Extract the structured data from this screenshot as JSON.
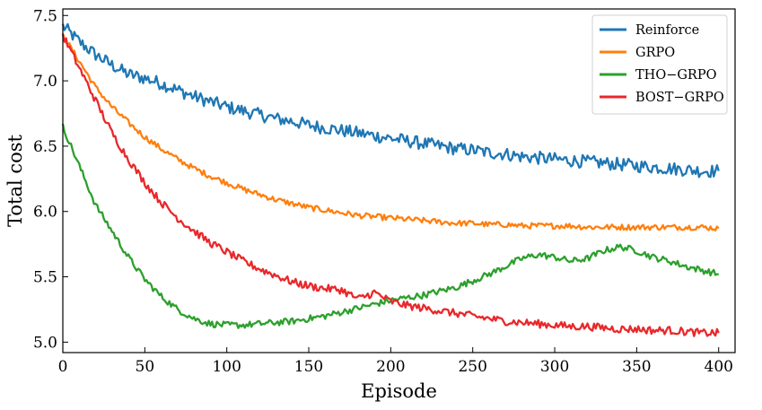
{
  "chart_data": {
    "type": "line",
    "title": "",
    "xlabel": "Episode",
    "ylabel": "Total cost",
    "xlim": [
      0,
      410
    ],
    "ylim": [
      4.92,
      7.55
    ],
    "xticks": [
      0,
      50,
      100,
      150,
      200,
      250,
      300,
      350,
      400
    ],
    "yticks": [
      5.0,
      5.5,
      6.0,
      6.5,
      7.0,
      7.5
    ],
    "grid": false,
    "legend_position": "top-right",
    "series": [
      {
        "name": "Reinforce",
        "color": "#1f77b4",
        "x": [
          0,
          10,
          20,
          30,
          40,
          50,
          60,
          70,
          80,
          90,
          100,
          110,
          120,
          130,
          140,
          150,
          160,
          170,
          180,
          190,
          200,
          210,
          220,
          230,
          240,
          250,
          260,
          270,
          280,
          290,
          300,
          310,
          320,
          330,
          340,
          350,
          360,
          370,
          380,
          390,
          400
        ],
        "y": [
          7.42,
          7.3,
          7.2,
          7.12,
          7.05,
          7.02,
          6.98,
          6.93,
          6.88,
          6.84,
          6.8,
          6.77,
          6.74,
          6.71,
          6.69,
          6.66,
          6.64,
          6.62,
          6.6,
          6.58,
          6.56,
          6.54,
          6.52,
          6.5,
          6.48,
          6.47,
          6.45,
          6.44,
          6.42,
          6.41,
          6.4,
          6.39,
          6.38,
          6.37,
          6.36,
          6.35,
          6.34,
          6.33,
          6.32,
          6.31,
          6.31
        ]
      },
      {
        "name": "GRPO",
        "color": "#ff7f0e",
        "x": [
          0,
          10,
          20,
          30,
          40,
          50,
          60,
          70,
          80,
          90,
          100,
          110,
          120,
          130,
          140,
          150,
          160,
          170,
          180,
          190,
          200,
          210,
          220,
          230,
          240,
          250,
          260,
          270,
          280,
          290,
          300,
          310,
          320,
          330,
          340,
          350,
          360,
          370,
          380,
          390,
          400
        ],
        "y": [
          7.35,
          7.15,
          6.95,
          6.8,
          6.68,
          6.57,
          6.48,
          6.4,
          6.33,
          6.27,
          6.22,
          6.17,
          6.13,
          6.09,
          6.06,
          6.03,
          6.01,
          5.99,
          5.97,
          5.96,
          5.95,
          5.94,
          5.93,
          5.92,
          5.91,
          5.91,
          5.9,
          5.9,
          5.89,
          5.89,
          5.89,
          5.89,
          5.88,
          5.88,
          5.88,
          5.88,
          5.88,
          5.88,
          5.88,
          5.88,
          5.87
        ]
      },
      {
        "name": "THO−GRPO",
        "color": "#2ca02c",
        "x": [
          0,
          10,
          20,
          30,
          40,
          50,
          60,
          70,
          80,
          90,
          100,
          110,
          120,
          130,
          140,
          150,
          160,
          170,
          180,
          190,
          200,
          210,
          220,
          230,
          240,
          250,
          260,
          270,
          280,
          290,
          300,
          310,
          320,
          330,
          340,
          350,
          360,
          370,
          380,
          390,
          400
        ],
        "y": [
          6.65,
          6.35,
          6.05,
          5.85,
          5.65,
          5.48,
          5.35,
          5.25,
          5.18,
          5.14,
          5.13,
          5.13,
          5.14,
          5.15,
          5.16,
          5.18,
          5.2,
          5.23,
          5.26,
          5.29,
          5.32,
          5.34,
          5.36,
          5.39,
          5.42,
          5.47,
          5.52,
          5.58,
          5.64,
          5.67,
          5.65,
          5.62,
          5.64,
          5.7,
          5.73,
          5.7,
          5.65,
          5.62,
          5.58,
          5.55,
          5.52
        ]
      },
      {
        "name": "BOST−GRPO",
        "color": "#e8282b",
        "x": [
          0,
          10,
          20,
          30,
          40,
          50,
          60,
          70,
          80,
          90,
          100,
          110,
          120,
          130,
          140,
          150,
          160,
          170,
          180,
          190,
          200,
          210,
          220,
          230,
          240,
          250,
          260,
          270,
          280,
          290,
          300,
          310,
          320,
          330,
          340,
          350,
          360,
          370,
          380,
          390,
          400
        ],
        "y": [
          7.35,
          7.1,
          6.85,
          6.6,
          6.4,
          6.22,
          6.07,
          5.95,
          5.85,
          5.76,
          5.69,
          5.62,
          5.56,
          5.51,
          5.46,
          5.43,
          5.41,
          5.4,
          5.33,
          5.38,
          5.31,
          5.28,
          5.26,
          5.24,
          5.22,
          5.2,
          5.18,
          5.16,
          5.15,
          5.14,
          5.13,
          5.12,
          5.12,
          5.11,
          5.1,
          5.1,
          5.09,
          5.09,
          5.08,
          5.07,
          5.07
        ]
      }
    ]
  }
}
